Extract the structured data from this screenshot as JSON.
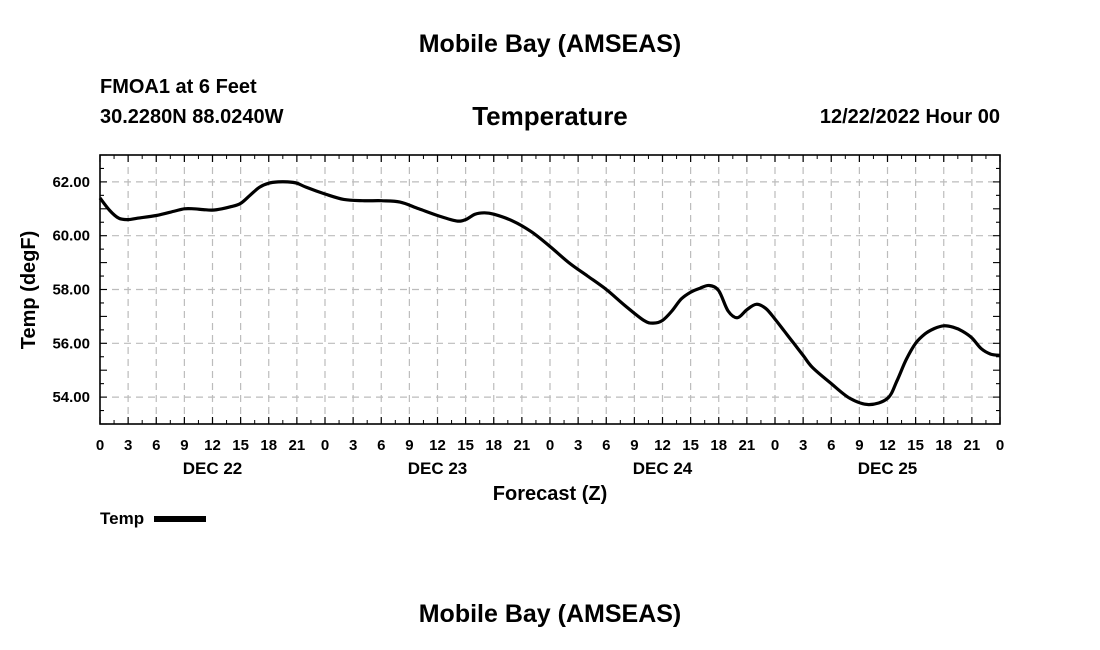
{
  "header": {
    "title": "Mobile Bay (AMSEAS)",
    "station": "FMOA1 at 6 Feet",
    "coords": "30.2280N  88.0240W",
    "variable": "Temperature",
    "run_time": "12/22/2022 Hour 00"
  },
  "footer": {
    "title": "Mobile Bay (AMSEAS)"
  },
  "legend": {
    "label": "Temp",
    "color": "#000000"
  },
  "chart_data": {
    "type": "line",
    "title": "Temperature",
    "xlabel": "Forecast (Z)",
    "ylabel": "Temp (degF)",
    "xlim": [
      0,
      96
    ],
    "ylim": [
      53,
      63
    ],
    "yticks": [
      54,
      56,
      58,
      60,
      62
    ],
    "ytick_labels": [
      "54.00",
      "56.00",
      "58.00",
      "60.00",
      "62.00"
    ],
    "xtick_labels": [
      "0",
      "3",
      "6",
      "9",
      "12",
      "15",
      "18",
      "21",
      "0",
      "3",
      "6",
      "9",
      "12",
      "15",
      "18",
      "21",
      "0",
      "3",
      "6",
      "9",
      "12",
      "15",
      "18",
      "21",
      "0",
      "3",
      "6",
      "9",
      "12",
      "15",
      "18",
      "21",
      "0"
    ],
    "day_labels": [
      {
        "label": "DEC 22",
        "x": 12
      },
      {
        "label": "DEC 23",
        "x": 36
      },
      {
        "label": "DEC 24",
        "x": 60
      },
      {
        "label": "DEC 25",
        "x": 84
      }
    ],
    "grid": true,
    "series": [
      {
        "name": "Temp",
        "x": [
          0,
          1,
          2,
          3,
          4,
          6,
          8,
          9,
          10,
          11,
          12,
          13,
          14,
          15,
          16,
          17,
          18,
          19,
          20,
          21,
          22,
          24,
          26,
          28,
          30,
          32,
          34,
          36,
          38,
          39,
          40,
          41,
          42,
          44,
          46,
          48,
          50,
          52,
          54,
          56,
          58,
          59,
          60,
          61,
          62,
          63,
          64,
          65,
          66,
          67,
          68,
          69,
          70,
          71,
          72,
          73,
          74,
          75,
          76,
          78,
          80,
          82,
          84,
          85,
          86,
          87,
          88,
          89,
          90,
          91,
          92,
          93,
          94,
          95,
          96
        ],
        "y": [
          61.4,
          60.95,
          60.65,
          60.6,
          60.65,
          60.75,
          60.92,
          61.0,
          61.0,
          60.97,
          60.95,
          61.0,
          61.08,
          61.2,
          61.5,
          61.8,
          61.95,
          62.0,
          62.0,
          61.95,
          61.8,
          61.55,
          61.35,
          61.3,
          61.3,
          61.25,
          61.0,
          60.75,
          60.55,
          60.6,
          60.8,
          60.85,
          60.8,
          60.55,
          60.15,
          59.6,
          59.0,
          58.5,
          58.0,
          57.4,
          56.85,
          56.75,
          56.85,
          57.2,
          57.65,
          57.9,
          58.05,
          58.15,
          57.95,
          57.2,
          56.95,
          57.25,
          57.45,
          57.3,
          56.9,
          56.45,
          56.0,
          55.55,
          55.1,
          54.5,
          53.95,
          53.72,
          53.95,
          54.6,
          55.4,
          56.0,
          56.35,
          56.55,
          56.65,
          56.6,
          56.45,
          56.2,
          55.8,
          55.6,
          55.55
        ]
      }
    ]
  }
}
